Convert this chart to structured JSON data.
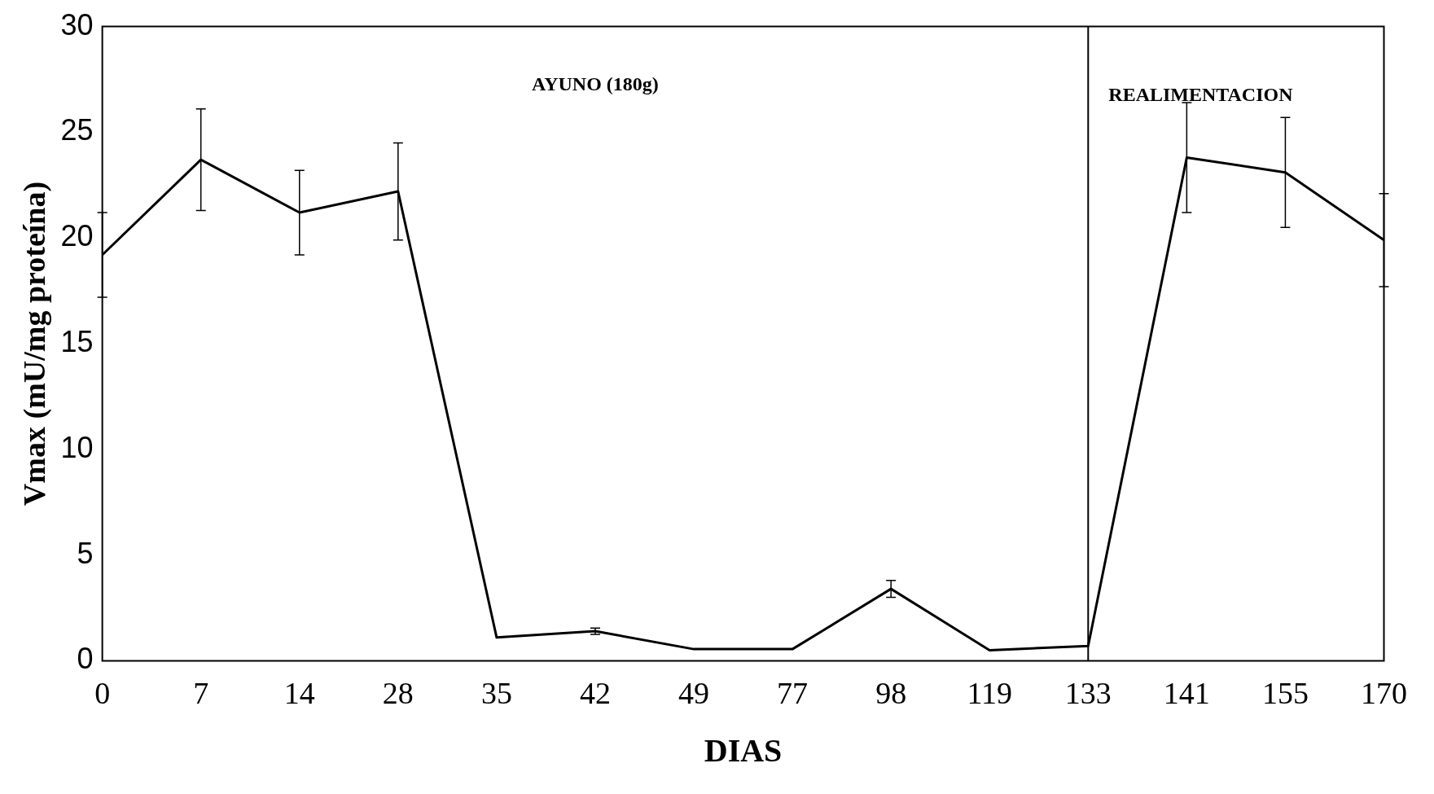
{
  "chart_data": {
    "type": "line",
    "xlabel": "DIAS",
    "ylabel": "Vmax (mU/mg proteína)",
    "categories": [
      "0",
      "7",
      "14",
      "28",
      "35",
      "42",
      "49",
      "77",
      "98",
      "119",
      "133",
      "141",
      "155",
      "170"
    ],
    "values": [
      19.2,
      23.7,
      21.2,
      22.2,
      1.1,
      1.4,
      0.55,
      0.55,
      3.4,
      0.5,
      0.7,
      23.8,
      23.1,
      19.9
    ],
    "errors": [
      2,
      2.4,
      2,
      2.3,
      null,
      0.15,
      null,
      null,
      0.4,
      null,
      null,
      2.6,
      2.6,
      2.2
    ],
    "color": "#000000",
    "ylim": [
      0,
      30
    ],
    "yticks": [
      0,
      5,
      10,
      15,
      20,
      25,
      30
    ],
    "grid": false,
    "legend": false,
    "ref_lines": [
      {
        "axis": "x",
        "value": "133",
        "color": "#000000"
      }
    ],
    "annotations": [
      "AYUNO (180g)",
      "REALIMENTACION"
    ]
  }
}
